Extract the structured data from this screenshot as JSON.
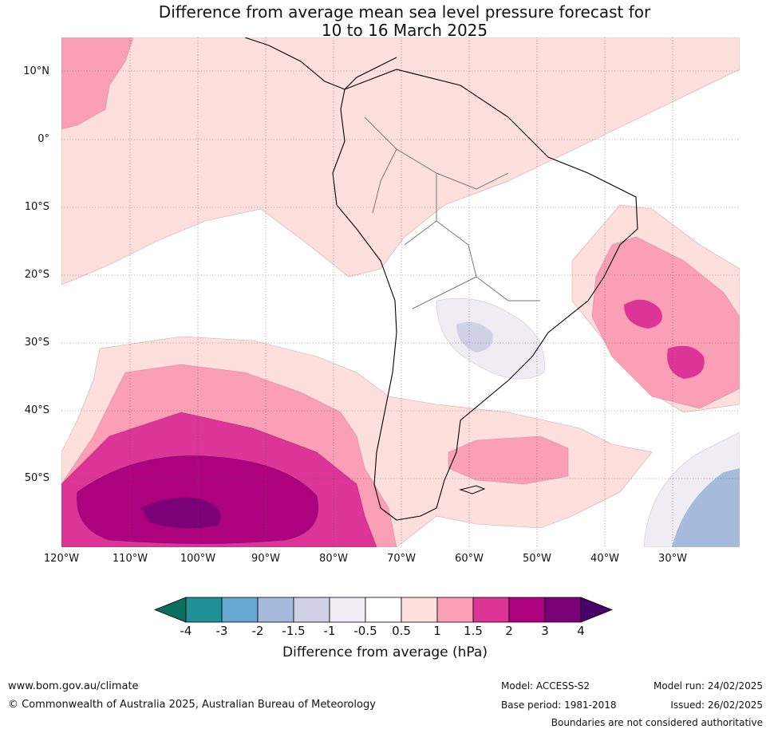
{
  "title_line1": "Difference from average mean sea level pressure forecast for",
  "title_line2": "10 to 16 March 2025",
  "lat_labels": [
    "10°N",
    "0°",
    "10°S",
    "20°S",
    "30°S",
    "40°S",
    "50°S"
  ],
  "lon_labels": [
    "120°W",
    "110°W",
    "100°W",
    "90°W",
    "80°W",
    "70°W",
    "60°W",
    "50°W",
    "40°W",
    "30°W"
  ],
  "legend": {
    "title": "Difference from average (hPa)",
    "ticks": [
      "-4",
      "-3",
      "-2",
      "-1.5",
      "-1",
      "-0.5",
      "0.5",
      "1",
      "1.5",
      "2",
      "3",
      "4"
    ],
    "colors": [
      "#0b6e5e",
      "#1f9197",
      "#66a8cf",
      "#a6bbdb",
      "#d0d1e6",
      "#efecf3",
      "#ffffff",
      "#fde0dd",
      "#fa9fb5",
      "#dd3497",
      "#ae017e",
      "#7a0177",
      "#49006a"
    ]
  },
  "footer": {
    "url": "www.bom.gov.au/climate",
    "copyright": "© Commonwealth of Australia 2025, Australian Bureau of Meteorology",
    "model": "Model: ACCESS-S2",
    "base_period": "Base period: 1981-2018",
    "model_run": "Model run: 24/02/2025",
    "issued": "Issued: 26/02/2025",
    "disclaimer": "Boundaries are not considered authoritative"
  }
}
